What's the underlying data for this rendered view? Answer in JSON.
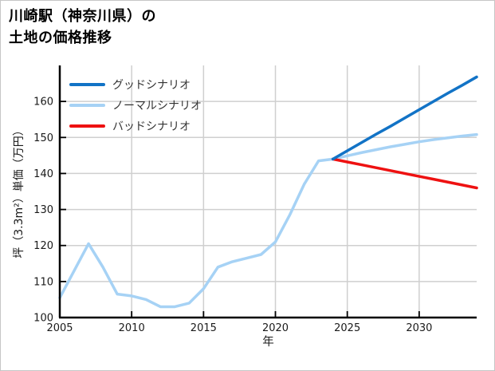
{
  "title": {
    "line1": "川崎駅（神奈川県）の",
    "line2": "土地の価格推移"
  },
  "legend": [
    {
      "key": "good",
      "label": "グッドシナリオ",
      "color": "#1273c6"
    },
    {
      "key": "normal",
      "label": "ノーマルシナリオ",
      "color": "#a6d2f5"
    },
    {
      "key": "bad",
      "label": "バッドシナリオ",
      "color": "#ee1111"
    }
  ],
  "colors": {
    "grid": "#cfcfcf",
    "axis": "#000000",
    "tick_label": "#1a1a1a",
    "history_line": "#a6d2f5"
  },
  "chart_data": {
    "type": "line",
    "title": "川崎駅（神奈川県）の土地の価格推移",
    "xlabel": "年",
    "ylabel": "坪（3.3m²）単価（万円）",
    "xlim": [
      2005,
      2034
    ],
    "ylim": [
      100,
      170
    ],
    "x_ticks": [
      2005,
      2010,
      2015,
      2020,
      2025,
      2030
    ],
    "y_ticks": [
      100,
      110,
      120,
      130,
      140,
      150,
      160
    ],
    "grid": true,
    "legend_position": "top-left",
    "series": [
      {
        "key": "history",
        "name": "history",
        "color": "#a6d2f5",
        "x": [
          2005,
          2006,
          2007,
          2008,
          2009,
          2010,
          2011,
          2012,
          2013,
          2014,
          2015,
          2016,
          2017,
          2018,
          2019,
          2020,
          2021,
          2022,
          2023,
          2024
        ],
        "values": [
          105.5,
          113,
          120.5,
          114,
          106.5,
          106,
          105,
          103,
          103,
          104,
          108,
          114,
          115.5,
          116.5,
          117.5,
          121,
          128.5,
          137,
          143.5,
          144
        ]
      },
      {
        "key": "normal",
        "name": "ノーマルシナリオ",
        "color": "#a6d2f5",
        "x": [
          2024,
          2025,
          2026,
          2027,
          2028,
          2029,
          2030,
          2031,
          2032,
          2033,
          2034
        ],
        "values": [
          144,
          144.9,
          145.8,
          146.6,
          147.4,
          148.1,
          148.8,
          149.4,
          149.9,
          150.4,
          150.8
        ]
      },
      {
        "key": "bad",
        "name": "バッドシナリオ",
        "color": "#ee1111",
        "x": [
          2024,
          2025,
          2026,
          2027,
          2028,
          2029,
          2030,
          2031,
          2032,
          2033,
          2034
        ],
        "values": [
          144,
          143.2,
          142.4,
          141.6,
          140.8,
          140,
          139.2,
          138.4,
          137.6,
          136.8,
          136
        ]
      },
      {
        "key": "good",
        "name": "グッドシナリオ",
        "color": "#1273c6",
        "x": [
          2024,
          2025,
          2026,
          2027,
          2028,
          2029,
          2030,
          2031,
          2032,
          2033,
          2034
        ],
        "values": [
          144,
          146.3,
          148.6,
          150.9,
          153.1,
          155.4,
          157.7,
          160,
          162.3,
          164.5,
          166.8
        ]
      }
    ]
  }
}
